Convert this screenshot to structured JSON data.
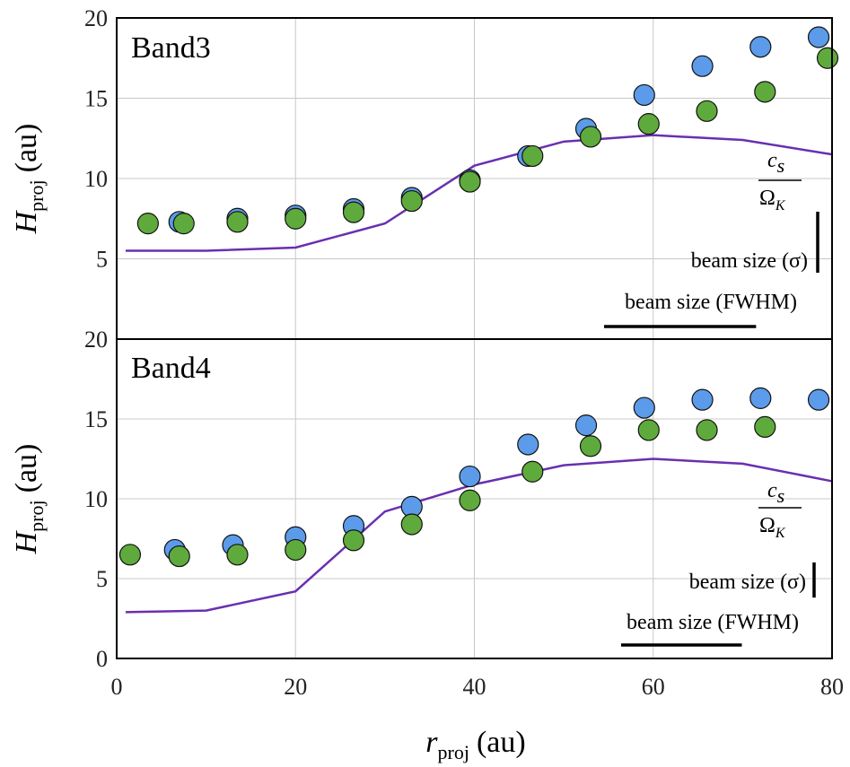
{
  "colors": {
    "series_a": "#5b9bea",
    "series_b": "#5faa3c",
    "model_line": "#6a2fb0",
    "grid": "#c8c8c8",
    "axis": "#000000"
  },
  "axes": {
    "xlabel_var": "r",
    "xlabel_sub": "proj",
    "xlabel_unit": "(au)",
    "ylabel_var": "H",
    "ylabel_sub": "proj",
    "ylabel_unit": "(au)"
  },
  "chart_data": [
    {
      "type": "scatter",
      "panel_label": "Band3",
      "xlim": [
        0,
        80
      ],
      "ylim": [
        0,
        20
      ],
      "x_ticks": [
        "0",
        "20",
        "40",
        "60",
        "80"
      ],
      "y_ticks": [
        "5",
        "10",
        "15",
        "20"
      ],
      "grid": true,
      "series": [
        {
          "name": "blue",
          "x": [
            7,
            13.5,
            20,
            26.5,
            33,
            39.5,
            46,
            52.5,
            59,
            65.5,
            72,
            78.5
          ],
          "y": [
            7.3,
            7.5,
            7.7,
            8.1,
            8.8,
            9.9,
            11.4,
            13.1,
            15.2,
            17.0,
            18.2,
            18.8
          ]
        },
        {
          "name": "green",
          "x": [
            3.5,
            7.5,
            13.5,
            20,
            26.5,
            33,
            39.5,
            46.5,
            53,
            59.5,
            66,
            72.5,
            79.5
          ],
          "y": [
            7.2,
            7.2,
            7.3,
            7.5,
            7.9,
            8.6,
            9.8,
            11.4,
            12.6,
            13.4,
            14.2,
            15.4,
            17.5
          ]
        },
        {
          "name": "cs/OmegaK",
          "style": "line",
          "x": [
            1,
            10,
            20,
            30,
            40,
            50,
            60,
            70,
            80
          ],
          "y": [
            5.5,
            5.5,
            5.7,
            7.2,
            10.8,
            12.3,
            12.7,
            12.4,
            11.5
          ]
        }
      ],
      "annotations": {
        "ratio_num": "c",
        "ratio_num_sub": "s",
        "ratio_den": "Ω",
        "ratio_den_sub": "K",
        "beam_sigma_label": "beam size (σ)",
        "beam_sigma_length": 3.8,
        "beam_fwhm_label": "beam size (FWHM)",
        "beam_fwhm_length": 17
      }
    },
    {
      "type": "scatter",
      "panel_label": "Band4",
      "xlim": [
        0,
        80
      ],
      "ylim": [
        0,
        20
      ],
      "x_ticks": [
        "0",
        "20",
        "40",
        "60",
        "80"
      ],
      "y_ticks": [
        "0",
        "5",
        "10",
        "15",
        "20"
      ],
      "grid": true,
      "series": [
        {
          "name": "blue",
          "x": [
            6.5,
            13,
            20,
            26.5,
            33,
            39.5,
            46,
            52.5,
            59,
            65.5,
            72,
            78.5
          ],
          "y": [
            6.8,
            7.1,
            7.6,
            8.3,
            9.5,
            11.4,
            13.4,
            14.6,
            15.7,
            16.2,
            16.3,
            16.2
          ]
        },
        {
          "name": "green",
          "x": [
            1.5,
            7,
            13.5,
            20,
            26.5,
            33,
            39.5,
            46.5,
            53,
            59.5,
            66,
            72.5
          ],
          "y": [
            6.5,
            6.4,
            6.5,
            6.8,
            7.4,
            8.4,
            9.9,
            11.7,
            13.3,
            14.3,
            14.3,
            14.5
          ]
        },
        {
          "name": "cs/OmegaK",
          "style": "line",
          "x": [
            1,
            10,
            20,
            30,
            40,
            50,
            60,
            70,
            80
          ],
          "y": [
            2.9,
            3.0,
            4.2,
            9.2,
            10.9,
            12.1,
            12.5,
            12.2,
            11.1
          ]
        }
      ],
      "annotations": {
        "ratio_num": "c",
        "ratio_num_sub": "s",
        "ratio_den": "Ω",
        "ratio_den_sub": "K",
        "beam_sigma_label": "beam size (σ)",
        "beam_sigma_length": 2.2,
        "beam_fwhm_label": "beam size (FWHM)",
        "beam_fwhm_length": 13.5
      }
    }
  ]
}
